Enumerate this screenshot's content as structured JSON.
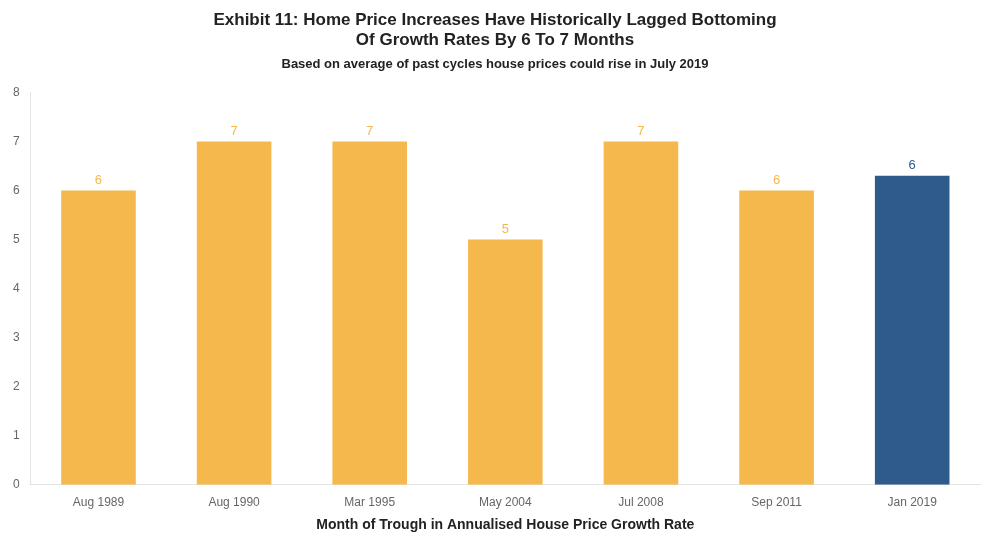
{
  "chart_data": {
    "type": "bar",
    "title": "Exhibit 11: Home Price Increases Have Historically Lagged Bottoming\nOf Growth Rates By 6 To 7 Months",
    "subtitle": "Based on average of past cycles house prices could rise in July 2019",
    "xlabel": "Month of Trough in Annualised House Price Growth Rate",
    "categories": [
      "Aug 1989",
      "Aug 1990",
      "Mar 1995",
      "May 2004",
      "Jul 2008",
      "Sep 2011",
      "Jan 2019"
    ],
    "values": [
      6,
      7,
      7,
      5,
      7,
      6,
      6.3
    ],
    "value_labels": [
      "6",
      "7",
      "7",
      "5",
      "7",
      "6",
      "6"
    ],
    "colors": [
      "#F5B84C",
      "#F5B84C",
      "#F5B84C",
      "#F5B84C",
      "#F5B84C",
      "#F5B84C",
      "#2E5B8A"
    ],
    "data_labels": true,
    "ylim": [
      0,
      8
    ],
    "yticks": [
      0,
      1,
      2,
      3,
      4,
      5,
      6,
      7,
      8
    ],
    "grid": false
  }
}
